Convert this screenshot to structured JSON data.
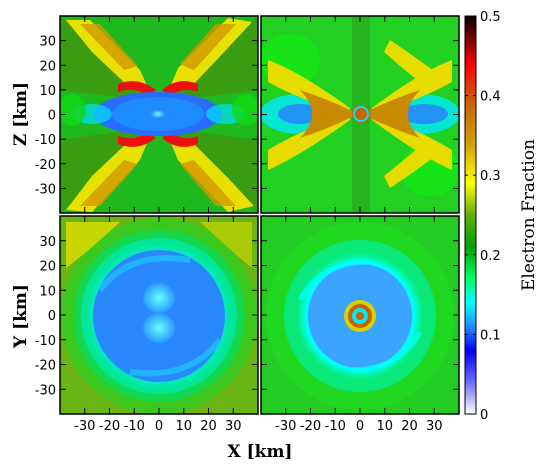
{
  "chart_data": {
    "type": "heatmap",
    "layout": "2x2 panels",
    "panels": [
      {
        "id": "top-left",
        "plane": "x-z",
        "description_key": "xz-early"
      },
      {
        "id": "top-right",
        "plane": "x-z",
        "description_key": "xz-late"
      },
      {
        "id": "bottom-left",
        "plane": "x-y",
        "description_key": "xy-early"
      },
      {
        "id": "bottom-right",
        "plane": "x-y",
        "description_key": "xy-late"
      }
    ],
    "axes": {
      "x": {
        "label": "X [km]",
        "ticks": [
          -30,
          -20,
          -10,
          0,
          10,
          20,
          30
        ],
        "tick_labels": [
          "-30",
          "-20",
          "-10",
          "0",
          "10",
          "20",
          "30"
        ],
        "range": [
          -40,
          40
        ]
      },
      "z": {
        "label": "Z [km]",
        "ticks": [
          30,
          20,
          10,
          0,
          -10,
          -20,
          -30
        ],
        "tick_labels": [
          "30",
          "20",
          "10",
          "0",
          "-10",
          "-20",
          "-30"
        ],
        "range": [
          -40,
          40
        ]
      },
      "y": {
        "label": "Y [km]",
        "ticks": [
          30,
          20,
          10,
          0,
          -10,
          -20,
          -30
        ],
        "tick_labels": [
          "30",
          "20",
          "10",
          "0",
          "-10",
          "-20",
          "-30"
        ],
        "range": [
          -40,
          40
        ]
      }
    },
    "colorbar": {
      "label": "Electron Fraction",
      "range": [
        0,
        0.5
      ],
      "ticks": [
        0,
        0.1,
        0.2,
        0.3,
        0.4,
        0.5
      ],
      "tick_labels": [
        "0",
        "0.1",
        "0.2",
        "0.3",
        "0.4",
        "0.5"
      ],
      "stops": [
        {
          "v": 0.0,
          "color": "#ffffff"
        },
        {
          "v": 0.04,
          "color": "#6b6bff"
        },
        {
          "v": 0.08,
          "color": "#0000ff"
        },
        {
          "v": 0.11,
          "color": "#1e90ff"
        },
        {
          "v": 0.14,
          "color": "#00ffff"
        },
        {
          "v": 0.17,
          "color": "#00ff66"
        },
        {
          "v": 0.21,
          "color": "#00a000"
        },
        {
          "v": 0.25,
          "color": "#60b000"
        },
        {
          "v": 0.29,
          "color": "#ffff00"
        },
        {
          "v": 0.34,
          "color": "#d2a000"
        },
        {
          "v": 0.39,
          "color": "#c86400"
        },
        {
          "v": 0.44,
          "color": "#ff0000"
        },
        {
          "v": 0.5,
          "color": "#000000"
        }
      ]
    }
  }
}
